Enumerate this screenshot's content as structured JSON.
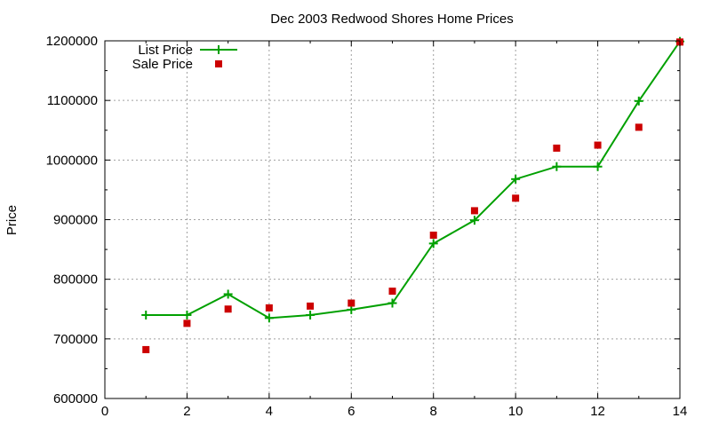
{
  "chart_data": {
    "type": "line",
    "title": "Dec 2003 Redwood Shores Home Prices",
    "xlabel": "",
    "ylabel": "Price",
    "xlim": [
      0,
      14
    ],
    "ylim": [
      600000,
      1200000
    ],
    "x_ticks": [
      0,
      2,
      4,
      6,
      8,
      10,
      12,
      14
    ],
    "y_ticks": [
      600000,
      700000,
      800000,
      900000,
      1000000,
      1100000,
      1200000
    ],
    "grid": true,
    "legend_position": "top-left",
    "series": [
      {
        "name": "List Price",
        "style": "lines+points",
        "color": "#00a000",
        "x": [
          1,
          2,
          3,
          4,
          5,
          6,
          7,
          8,
          9,
          10,
          11,
          12,
          13,
          14
        ],
        "y": [
          740000,
          740000,
          775000,
          735000,
          740000,
          749000,
          760000,
          860000,
          899000,
          968000,
          989000,
          989000,
          1099000,
          1199000
        ]
      },
      {
        "name": "Sale Price",
        "style": "points",
        "color": "#cc0000",
        "x": [
          1,
          2,
          3,
          4,
          5,
          6,
          7,
          8,
          9,
          10,
          11,
          12,
          13,
          14
        ],
        "y": [
          682000,
          726000,
          750000,
          752000,
          755000,
          760000,
          780000,
          874000,
          915000,
          936000,
          1020000,
          1025000,
          1055000,
          1198000
        ]
      }
    ]
  }
}
